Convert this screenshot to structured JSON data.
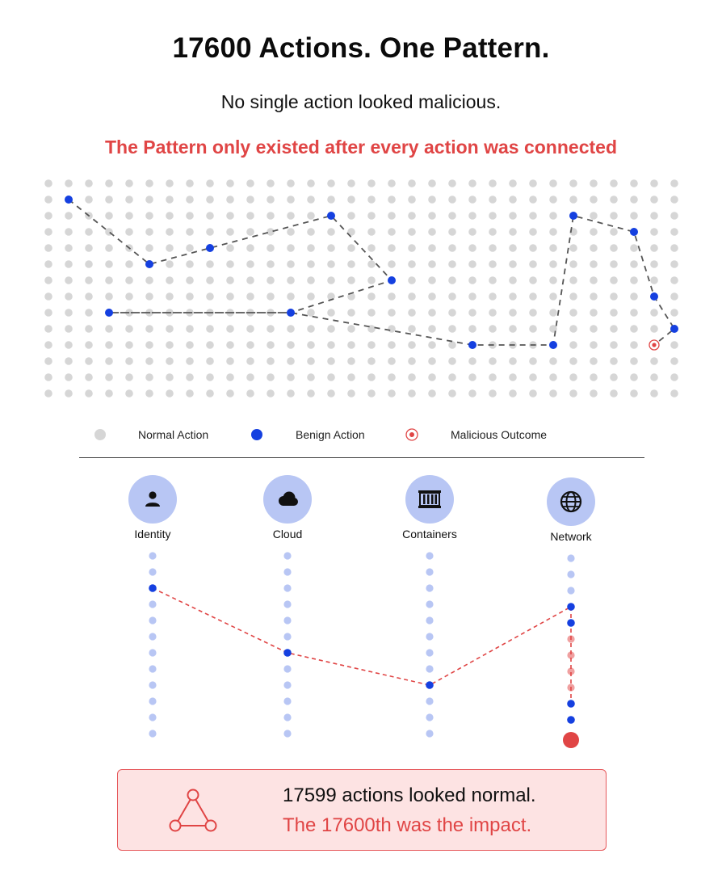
{
  "header": {
    "title": "17600 Actions. One Pattern.",
    "subtitle": "No single action looked malicious.",
    "highlight": "The Pattern only existed after every action was connected"
  },
  "grid": {
    "cols": 32,
    "rows": 14,
    "benign_points": [
      [
        1,
        1
      ],
      [
        5,
        5
      ],
      [
        8,
        4
      ],
      [
        14,
        2
      ],
      [
        17,
        6
      ],
      [
        3,
        8
      ],
      [
        12,
        8
      ],
      [
        21,
        10
      ],
      [
        25,
        10
      ],
      [
        26,
        2
      ],
      [
        29,
        3
      ],
      [
        30,
        7
      ],
      [
        31,
        9
      ]
    ],
    "path_order": [
      [
        1,
        1
      ],
      [
        5,
        5
      ],
      [
        8,
        4
      ],
      [
        14,
        2
      ],
      [
        17,
        6
      ],
      [
        12,
        8
      ],
      [
        3,
        8
      ],
      [
        12,
        8
      ],
      [
        21,
        10
      ],
      [
        25,
        10
      ],
      [
        26,
        2
      ],
      [
        29,
        3
      ],
      [
        30,
        7
      ],
      [
        31,
        9
      ],
      [
        30,
        10
      ]
    ],
    "malicious_point": [
      30,
      10
    ]
  },
  "colors": {
    "normal": "#d6d6d6",
    "benign": "#1540e0",
    "malicious": "#e04545",
    "lane": "#b8c6f4",
    "path": "#555555"
  },
  "legend": {
    "normal": "Normal Action",
    "benign": "Benign Action",
    "malicious": "Malicious Outcome"
  },
  "categories": [
    {
      "label": "Identity",
      "icon": "person-icon"
    },
    {
      "label": "Cloud",
      "icon": "cloud-icon"
    },
    {
      "label": "Containers",
      "icon": "container-icon"
    },
    {
      "label": "Network",
      "icon": "globe-icon"
    }
  ],
  "callout": {
    "line1": "17599 actions looked normal.",
    "line2": "The 17600th was the impact.",
    "icon": "triangle-nodes-icon"
  }
}
